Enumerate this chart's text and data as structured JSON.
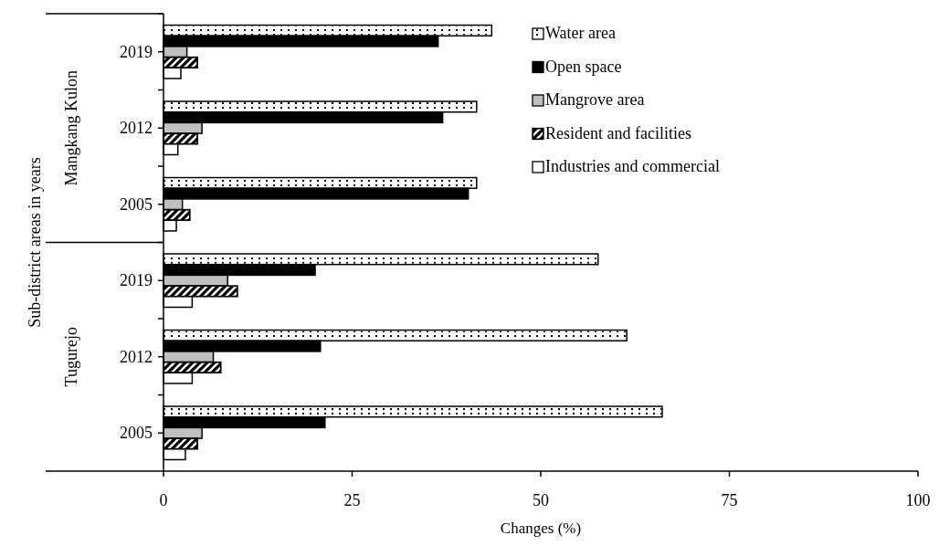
{
  "chart_data": {
    "type": "bar",
    "orientation": "horizontal",
    "xlabel": "Changes (%)",
    "ylabel": "Sub-district areas in years",
    "categories": [
      "2019",
      "2012",
      "2005",
      "2019",
      "2012",
      "2005"
    ],
    "annotations": [
      "Mangkang Kulon",
      "Tugurejo"
    ],
    "series": [
      {
        "name": "Water area",
        "color": "#ffffff",
        "values": [
          43.5,
          41.5,
          41.5,
          57.6,
          61.4,
          66.1
        ]
      },
      {
        "name": "Open space",
        "color": "#000000",
        "values": [
          36.4,
          37.0,
          40.4,
          20.1,
          20.8,
          21.4
        ]
      },
      {
        "name": "Mangrove area",
        "color": "#c0c0c0",
        "values": [
          3.1,
          5.1,
          2.5,
          8.5,
          6.6,
          5.1
        ]
      },
      {
        "name": "Resident and facilities",
        "color": "#000000",
        "values": [
          4.5,
          4.5,
          3.5,
          9.8,
          7.6,
          4.5
        ]
      },
      {
        "name": "Industries and commercial",
        "color": "#ffffff",
        "values": [
          2.3,
          1.9,
          1.7,
          3.8,
          3.8,
          2.9
        ]
      }
    ],
    "xlim": [
      0,
      100
    ],
    "xticks": [
      0,
      25,
      50,
      75,
      100
    ],
    "grid": false,
    "legend": "top right"
  }
}
